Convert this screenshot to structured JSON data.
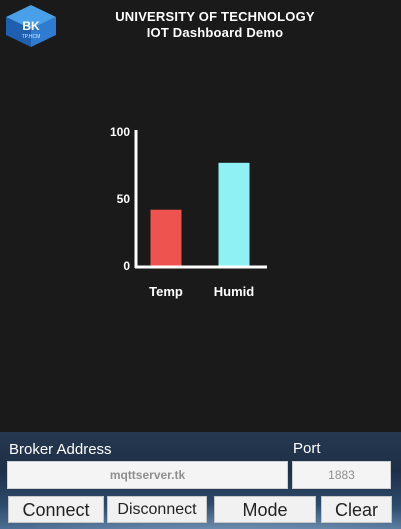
{
  "header": {
    "logo_text": "BK",
    "logo_subtext": "TP.HCM",
    "title_line1": "UNIVERSITY OF TECHNOLOGY",
    "title_line2": "IOT Dashboard Demo"
  },
  "chart_data": {
    "type": "bar",
    "categories": [
      "Temp",
      "Humid"
    ],
    "values": [
      42,
      77
    ],
    "colors": [
      "#ef5350",
      "#8ff1f4"
    ],
    "y_ticks": [
      "0",
      "50",
      "100"
    ],
    "ylim": [
      0,
      100
    ],
    "title": "",
    "xlabel": "",
    "ylabel": ""
  },
  "connection_panel": {
    "broker_label": "Broker Address",
    "port_label": "Port",
    "broker_value": "mqttserver.tk",
    "port_value": "1883",
    "buttons": {
      "connect": "Connect",
      "disconnect": "Disconnect",
      "mode": "Mode",
      "clear": "Clear"
    }
  }
}
